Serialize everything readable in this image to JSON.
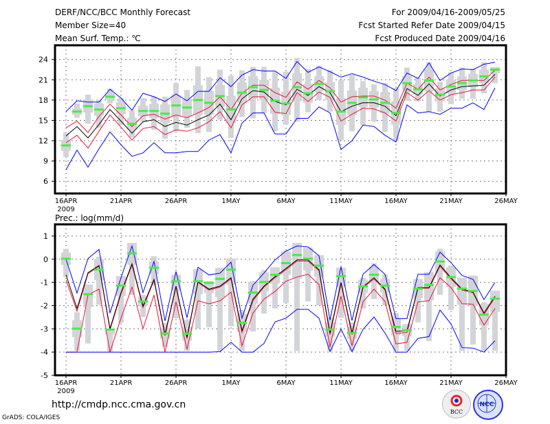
{
  "header": {
    "title": "DERF/NCC/BCC Monthly Forecast",
    "member_size": "Member Size=40",
    "variable": "Mean Surf. Temp.: ℃",
    "period": "For 2009/04/16-2009/05/25",
    "started": "Fcst Started Refer Date 2009/04/15",
    "produced": "Fcst Produced Date 2009/04/16"
  },
  "footer": {
    "url": "http://cmdp.ncc.cma.gov.cn",
    "grads": "GrADS: COLA/IGES",
    "logo_bcc": "BCC",
    "logo_ncc": "NCC"
  },
  "colors": {
    "mean": "#000000",
    "spread": "#ee1133",
    "envelope": "#0000ff",
    "median": "#44ee44",
    "members": "#d3d4d8"
  },
  "chart_data": [
    {
      "type": "line",
      "title": "Mean Surf. Temp.: ℃",
      "x_start": "2009-04-16",
      "x_tick_labels": [
        "16APR",
        "21APR",
        "26APR",
        "1MAY",
        "6MAY",
        "11MAY",
        "16MAY",
        "21MAY",
        "26MAY"
      ],
      "x_year_label": "2009",
      "y_ticks": [
        6,
        9,
        12,
        15,
        18,
        21,
        24
      ],
      "ylim": [
        4.2,
        26.1
      ],
      "grid": true,
      "series": [
        {
          "name": "max",
          "color": "blue",
          "values": [
            16.3,
            17.9,
            17.7,
            17.7,
            19.6,
            18.3,
            16.5,
            19.0,
            18.5,
            17.8,
            18.9,
            17.9,
            19.3,
            19.3,
            21.3,
            20.0,
            21.7,
            22.5,
            22.3,
            22.3,
            21.2,
            23.7,
            22.1,
            22.9,
            22.2,
            21.4,
            21.9,
            21.4,
            20.8,
            20.3,
            19.4,
            22.0,
            21.2,
            23.5,
            20.9,
            22.0,
            22.6,
            22.5,
            23.3,
            23.6
          ]
        },
        {
          "name": "upper",
          "color": "red",
          "values": [
            13.9,
            14.9,
            13.2,
            15.6,
            17.4,
            15.8,
            14.1,
            15.7,
            15.9,
            15.2,
            15.8,
            15.4,
            16.1,
            16.9,
            18.5,
            16.6,
            19.0,
            20.2,
            20.2,
            19.1,
            18.4,
            20.7,
            19.6,
            20.9,
            19.8,
            17.7,
            18.5,
            18.6,
            18.6,
            18.0,
            16.8,
            20.5,
            19.6,
            21.4,
            19.5,
            20.3,
            20.9,
            20.9,
            20.9,
            22.4
          ]
        },
        {
          "name": "mean",
          "color": "black",
          "values": [
            12.7,
            14.1,
            12.4,
            14.4,
            16.6,
            14.9,
            13.1,
            14.8,
            15.1,
            14.1,
            14.7,
            14.3,
            15.1,
            15.8,
            17.4,
            15.1,
            18.2,
            19.4,
            19.2,
            17.8,
            17.3,
            19.6,
            18.7,
            20.0,
            19.1,
            16.3,
            17.1,
            17.6,
            17.6,
            17.1,
            15.7,
            19.7,
            18.7,
            20.4,
            18.6,
            19.5,
            20.0,
            20.1,
            20.2,
            21.8
          ]
        },
        {
          "name": "lower",
          "color": "red",
          "values": [
            11.7,
            12.8,
            10.9,
            13.4,
            15.8,
            14.0,
            12.1,
            13.8,
            14.1,
            12.9,
            13.6,
            13.4,
            13.9,
            14.8,
            16.3,
            13.9,
            17.3,
            18.5,
            18.5,
            16.2,
            16.0,
            19.1,
            17.8,
            19.2,
            18.4,
            14.9,
            15.9,
            16.8,
            16.7,
            16.1,
            14.9,
            19.1,
            18.0,
            19.4,
            18.0,
            18.8,
            19.1,
            19.5,
            19.5,
            21.4
          ]
        },
        {
          "name": "min",
          "color": "blue",
          "values": [
            7.7,
            10.6,
            8.1,
            10.8,
            13.3,
            11.4,
            9.7,
            10.2,
            11.7,
            10.2,
            10.2,
            10.4,
            10.4,
            12.1,
            12.9,
            10.2,
            14.6,
            16.1,
            16.1,
            13.0,
            13.0,
            15.3,
            15.3,
            17.0,
            16.1,
            10.7,
            12.0,
            14.3,
            14.1,
            12.8,
            11.8,
            17.3,
            16.1,
            16.3,
            15.9,
            16.8,
            16.8,
            17.6,
            16.6,
            19.8
          ]
        }
      ],
      "median": [
        11.3,
        16.3,
        17.1,
        16.6,
        18.5,
        16.8,
        14.5,
        16.4,
        16.4,
        16.0,
        17.2,
        16.9,
        18.0,
        17.6,
        18.6,
        16.6,
        19.1,
        19.9,
        19.5,
        17.9,
        17.5,
        19.9,
        19.0,
        20.4,
        19.3,
        16.3,
        17.6,
        18.4,
        18.1,
        17.6,
        16.1,
        20.5,
        19.6,
        20.9,
        18.8,
        20.0,
        20.5,
        20.9,
        21.5,
        22.5
      ],
      "whisker_high": [
        13.2,
        17.5,
        18.8,
        18.0,
        19.7,
        18.3,
        16.5,
        18.3,
        18.5,
        18.5,
        20.5,
        19.5,
        23.0,
        21.4,
        22.5,
        21.6,
        22.4,
        22.9,
        22.9,
        22.2,
        22.2,
        24.2,
        22.6,
        23.1,
        22.4,
        21.0,
        21.7,
        20.8,
        20.3,
        20.5,
        19.8,
        22.8,
        21.3,
        23.6,
        20.7,
        22.1,
        22.8,
        22.6,
        23.6,
        22.9
      ],
      "whisker_low": [
        9.6,
        15.4,
        14.5,
        13.9,
        17.5,
        14.3,
        12.5,
        14.8,
        13.6,
        12.3,
        13.4,
        13.9,
        13.1,
        13.3,
        15.1,
        12.4,
        15.5,
        15.3,
        16.1,
        13.4,
        14.4,
        14.8,
        16.2,
        18.0,
        16.3,
        12.1,
        13.4,
        14.3,
        14.8,
        13.3,
        11.9,
        17.9,
        17.8,
        16.2,
        16.3,
        17.4,
        18.2,
        18.2,
        19.0,
        20.5
      ]
    },
    {
      "type": "line",
      "title": "Prec.: log(mm/d)",
      "x_start": "2009-04-16",
      "x_tick_labels": [
        "16APR",
        "21APR",
        "26APR",
        "1MAY",
        "6MAY",
        "11MAY",
        "16MAY",
        "21MAY",
        "26MAY"
      ],
      "x_year_label": "2009",
      "y_ticks": [
        -5,
        -4,
        -3,
        -2,
        -1,
        0,
        1
      ],
      "ylim": [
        -5,
        1.5
      ],
      "grid": true,
      "series": [
        {
          "name": "max",
          "color": "blue",
          "values": [
            0,
            -1.46,
            0.03,
            0.42,
            -2.32,
            -0.8,
            0.57,
            -1.44,
            -0.1,
            -2.66,
            -0.53,
            -2.52,
            -0.35,
            -0.68,
            -0.6,
            -0.13,
            -2.54,
            -1.12,
            -0.6,
            -0.03,
            0.35,
            0.57,
            0.53,
            0.15,
            -2.62,
            -0.33,
            -2.64,
            -0.65,
            -0.23,
            -0.65,
            -2.56,
            -2.56,
            -0.65,
            -0.65,
            0.3,
            -0.15,
            -0.7,
            -0.87,
            -1.74,
            -1.0
          ]
        },
        {
          "name": "upper",
          "color": "red",
          "values": [
            -0.9,
            -2.24,
            -0.62,
            -0.3,
            -3.05,
            -1.5,
            -0.25,
            -2.08,
            -0.92,
            -3.3,
            -1.2,
            -3.42,
            -1.0,
            -1.33,
            -1.2,
            -0.85,
            -3.15,
            -1.78,
            -1.2,
            -0.8,
            -0.45,
            -0.08,
            -0.08,
            -0.5,
            -3.25,
            -1.05,
            -3.25,
            -1.23,
            -0.85,
            -1.33,
            -3.2,
            -3.15,
            -1.25,
            -1.25,
            -0.3,
            -0.85,
            -1.33,
            -1.45,
            -2.38,
            -1.65
          ]
        },
        {
          "name": "mean",
          "color": "black",
          "values": [
            -0.67,
            -2.12,
            -0.58,
            -0.27,
            -2.99,
            -1.44,
            -0.2,
            -2.02,
            -0.87,
            -3.23,
            -1.16,
            -3.36,
            -0.97,
            -1.29,
            -1.16,
            -0.8,
            -3.08,
            -1.72,
            -1.16,
            -0.75,
            -0.4,
            -0.03,
            -0.03,
            -0.45,
            -3.18,
            -1.0,
            -3.18,
            -1.19,
            -0.8,
            -1.29,
            -3.11,
            -3.08,
            -1.22,
            -1.22,
            -0.25,
            -0.8,
            -1.29,
            -1.42,
            -2.32,
            -1.59
          ]
        },
        {
          "name": "lower",
          "color": "red",
          "values": [
            -4,
            -4,
            -1.54,
            -1.29,
            -4,
            -2.54,
            -1.2,
            -2.99,
            -1.54,
            -4,
            -1.84,
            -3.88,
            -1.79,
            -1.92,
            -1.79,
            -1.42,
            -3.73,
            -2.32,
            -1.72,
            -1.39,
            -0.95,
            -0.77,
            -0.65,
            -1.09,
            -3.78,
            -1.59,
            -3.73,
            -1.84,
            -1.29,
            -1.82,
            -3.65,
            -3.58,
            -1.84,
            -1.79,
            -0.8,
            -1.22,
            -1.92,
            -1.94,
            -2.84,
            -2.12
          ]
        },
        {
          "name": "min",
          "color": "blue",
          "values": [
            -4,
            -4,
            -4,
            -4,
            -4,
            -4,
            -4,
            -4,
            -4,
            -4,
            -4,
            -4,
            -4,
            -4,
            -3.98,
            -3.58,
            -4,
            -4,
            -3.63,
            -2.7,
            -2.54,
            -2.16,
            -2.16,
            -2.54,
            -3.98,
            -3.01,
            -3.98,
            -3.03,
            -2.49,
            -3.18,
            -4,
            -4,
            -3.41,
            -3.33,
            -2.19,
            -2.79,
            -3.81,
            -3.83,
            -4,
            -3.51
          ]
        }
      ],
      "median": [
        0.02,
        -2.99,
        -1.51,
        -0.45,
        -3.03,
        -1.14,
        0.25,
        -1.82,
        -0.37,
        -3.2,
        -0.95,
        -3.21,
        -0.95,
        -1.02,
        -0.85,
        -0.45,
        -2.74,
        -1.44,
        -0.98,
        -0.67,
        -0.17,
        0.18,
        0.02,
        -0.28,
        -3.03,
        -0.73,
        -3.18,
        -1.17,
        -0.67,
        -1.14,
        -2.92,
        -3.06,
        -1.27,
        -1.11,
        -0.1,
        -0.77,
        -1.27,
        -1.37,
        -2.39,
        -1.7
      ],
      "whisker_high": [
        0.45,
        -2.29,
        -1.09,
        0.1,
        -2.99,
        -0.73,
        0.7,
        -1.54,
        0.13,
        -2.74,
        -0.67,
        -2.59,
        -0.43,
        -0.95,
        -0.37,
        0.03,
        -2.19,
        -0.95,
        -0.47,
        -0.35,
        0.37,
        0.7,
        0.5,
        0.17,
        -2.52,
        -0.37,
        -2.72,
        -0.8,
        -0.17,
        -0.65,
        -2.32,
        -2.79,
        -0.85,
        -0.55,
        0.45,
        -0.27,
        -0.8,
        -0.7,
        -1.86,
        -1.36
      ],
      "whisker_low": [
        -0.77,
        -3.95,
        -3.63,
        -1.96,
        -3.98,
        -2.74,
        -1.54,
        -2.49,
        -1.12,
        -3.78,
        -2.54,
        -3.95,
        -2.99,
        -2.93,
        -3.95,
        -2.89,
        -3.95,
        -3.11,
        -2.34,
        -2.12,
        -1.89,
        -3.95,
        -1.82,
        -1.99,
        -3.95,
        -2.52,
        -3.95,
        -2.12,
        -1.72,
        -1.99,
        -3.95,
        -3.95,
        -2.72,
        -3.53,
        -1.54,
        -2.19,
        -3.95,
        -3.68,
        -3.95,
        -3.95
      ]
    }
  ]
}
